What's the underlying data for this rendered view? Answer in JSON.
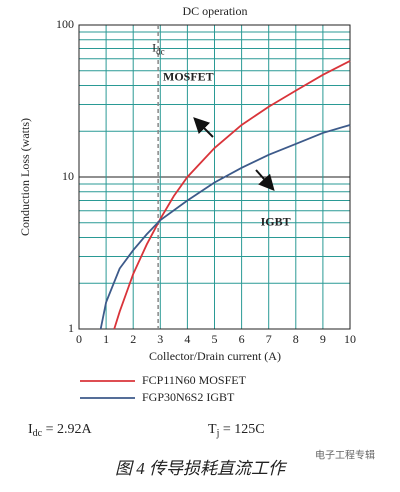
{
  "chart_data": {
    "type": "line",
    "title": "DC operation",
    "x_label": "Collector/Drain current (A)",
    "y_label": "Conduction Loss (watts)",
    "y_scale": "log",
    "grid": true,
    "xlim": [
      0,
      10
    ],
    "xticks": [
      0,
      1,
      2,
      3,
      4,
      5,
      6,
      7,
      8,
      9,
      10
    ],
    "ylim": [
      1,
      100
    ],
    "yticks": [
      1,
      10,
      100
    ],
    "y_minor_grid": [
      2,
      3,
      4,
      5,
      6,
      7,
      8,
      9,
      20,
      30,
      40,
      50,
      60,
      70,
      80,
      90
    ],
    "series": [
      {
        "name": "FCP11N60 MOSFET",
        "color": "#d9343a",
        "x": [
          1.3,
          1.5,
          2,
          2.5,
          3,
          3.5,
          4,
          5,
          6,
          7,
          8,
          9,
          10
        ],
        "values": [
          1,
          1.3,
          2.3,
          3.6,
          5.3,
          7.5,
          10,
          15.5,
          22,
          29,
          37,
          47,
          58
        ]
      },
      {
        "name": "FGP30N6S2   IGBT",
        "color": "#3d5a8a",
        "x": [
          0.8,
          1,
          1.5,
          2,
          2.5,
          3,
          4,
          5,
          6,
          7,
          8,
          9,
          10
        ],
        "values": [
          1,
          1.5,
          2.5,
          3.3,
          4.2,
          5.2,
          7,
          9.2,
          11.5,
          14,
          16.5,
          19.5,
          22
        ]
      }
    ],
    "reference_line": {
      "x": 2.92,
      "label": "I",
      "label_sub": "dc"
    },
    "annotations": [
      {
        "text": "MOSFET",
        "x": 3.1,
        "y": 45
      },
      {
        "text": "IGBT",
        "x": 6.7,
        "y": 5
      }
    ],
    "notes": [
      {
        "main": "I",
        "sub": "dc",
        "rest": " = 2.92A"
      },
      {
        "main": "T",
        "sub": "j",
        "rest": " = 125C"
      }
    ],
    "caption": "图 4  传导损耗直流工作",
    "watermark": "电子工程专辑"
  }
}
